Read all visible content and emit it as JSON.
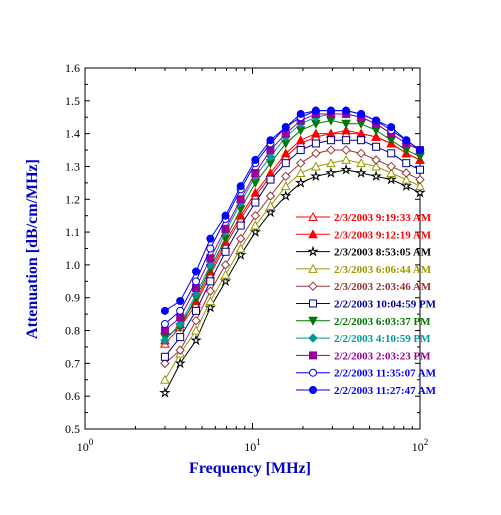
{
  "chart_data": {
    "type": "line",
    "title": "",
    "xlabel": "Frequency [MHz]",
    "ylabel": "Attenuation [dB/cm/MHz]",
    "xscale": "log",
    "xlim": [
      1,
      100
    ],
    "ylim": [
      0.5,
      1.6
    ],
    "x_ticks": [
      1,
      10,
      100
    ],
    "x_tick_labels": [
      {
        "base": "10",
        "exp": "0"
      },
      {
        "base": "10",
        "exp": "1"
      },
      {
        "base": "10",
        "exp": "2"
      }
    ],
    "y_ticks": [
      0.5,
      0.6,
      0.7,
      0.8,
      0.9,
      1.0,
      1.1,
      1.2,
      1.3,
      1.4,
      1.5,
      1.6
    ],
    "y_tick_labels": [
      "0.5",
      "0.6",
      "0.7",
      "0.8",
      "0.9",
      "1.0",
      "1.1",
      "1.2",
      "1.3",
      "1.4",
      "1.5",
      "1.6"
    ],
    "grid": false,
    "legend_position": "right",
    "x": [
      3.0,
      3.7,
      4.6,
      5.6,
      6.9,
      8.5,
      10.4,
      12.8,
      15.8,
      19.4,
      23.9,
      29.4,
      36.2,
      44.5,
      54.7,
      67.3,
      82.8,
      100
    ],
    "series": [
      {
        "name": "2/3/2003 9:19:33 AM",
        "color": "#ff0000",
        "marker": "triangle-open",
        "values": [
          0.76,
          0.81,
          0.88,
          0.97,
          1.06,
          1.14,
          1.21,
          1.27,
          1.33,
          1.37,
          1.39,
          1.4,
          1.4,
          1.4,
          1.39,
          1.37,
          1.34,
          1.32
        ]
      },
      {
        "name": "2/3/2003 9:12:19 AM",
        "color": "#ff0000",
        "marker": "triangle-filled",
        "values": [
          0.77,
          0.82,
          0.89,
          0.98,
          1.07,
          1.15,
          1.22,
          1.28,
          1.34,
          1.38,
          1.4,
          1.4,
          1.41,
          1.4,
          1.39,
          1.37,
          1.34,
          1.32
        ]
      },
      {
        "name": "2/3/2003 8:53:05 AM",
        "color": "#000000",
        "marker": "star-open",
        "values": [
          0.61,
          0.7,
          0.77,
          0.87,
          0.95,
          1.03,
          1.1,
          1.16,
          1.21,
          1.25,
          1.27,
          1.28,
          1.29,
          1.28,
          1.27,
          1.26,
          1.24,
          1.22
        ]
      },
      {
        "name": "2/3/2003 6:06:44 AM",
        "color": "#999900",
        "marker": "triangle-open",
        "values": [
          0.65,
          0.73,
          0.8,
          0.89,
          0.97,
          1.05,
          1.12,
          1.18,
          1.24,
          1.28,
          1.3,
          1.31,
          1.32,
          1.31,
          1.3,
          1.28,
          1.26,
          1.24
        ]
      },
      {
        "name": "2/3/2003 2:03:46 AM",
        "color": "#993333",
        "marker": "diamond-open",
        "values": [
          0.7,
          0.74,
          0.83,
          0.92,
          1.0,
          1.08,
          1.15,
          1.21,
          1.27,
          1.31,
          1.34,
          1.35,
          1.35,
          1.34,
          1.32,
          1.3,
          1.28,
          1.26
        ]
      },
      {
        "name": "2/2/2003 10:04:59 PM",
        "color": "#000099",
        "marker": "square-open",
        "values": [
          0.72,
          0.78,
          0.86,
          0.95,
          1.04,
          1.12,
          1.19,
          1.26,
          1.31,
          1.35,
          1.37,
          1.38,
          1.38,
          1.38,
          1.36,
          1.34,
          1.31,
          1.29
        ]
      },
      {
        "name": "2/2/2003 6:03:37 PM",
        "color": "#007700",
        "marker": "triangle-down-filled",
        "values": [
          0.78,
          0.81,
          0.9,
          0.99,
          1.08,
          1.17,
          1.25,
          1.31,
          1.37,
          1.41,
          1.43,
          1.44,
          1.43,
          1.43,
          1.41,
          1.38,
          1.35,
          1.33
        ]
      },
      {
        "name": "2/2/2003 4:10:59 PM",
        "color": "#009999",
        "marker": "diamond-filled",
        "values": [
          0.77,
          0.82,
          0.91,
          1.0,
          1.1,
          1.19,
          1.27,
          1.33,
          1.39,
          1.43,
          1.45,
          1.46,
          1.46,
          1.45,
          1.43,
          1.4,
          1.37,
          1.35
        ]
      },
      {
        "name": "2/2/2003 2:03:23 PM",
        "color": "#990099",
        "marker": "square-filled",
        "values": [
          0.8,
          0.84,
          0.93,
          1.02,
          1.11,
          1.2,
          1.28,
          1.35,
          1.4,
          1.44,
          1.46,
          1.46,
          1.46,
          1.45,
          1.43,
          1.4,
          1.37,
          1.35
        ]
      },
      {
        "name": "2/2/2003 11:35:07 AM",
        "color": "#0000ff",
        "marker": "circle-open",
        "values": [
          0.82,
          0.86,
          0.95,
          1.05,
          1.14,
          1.23,
          1.31,
          1.37,
          1.42,
          1.45,
          1.47,
          1.47,
          1.47,
          1.46,
          1.44,
          1.41,
          1.38,
          1.35
        ]
      },
      {
        "name": "2/2/2003 11:27:47 AM",
        "color": "#0000ff",
        "marker": "circle-filled",
        "values": [
          0.86,
          0.89,
          0.98,
          1.08,
          1.15,
          1.24,
          1.32,
          1.38,
          1.42,
          1.46,
          1.47,
          1.47,
          1.47,
          1.46,
          1.44,
          1.42,
          1.38,
          1.35
        ]
      }
    ]
  }
}
